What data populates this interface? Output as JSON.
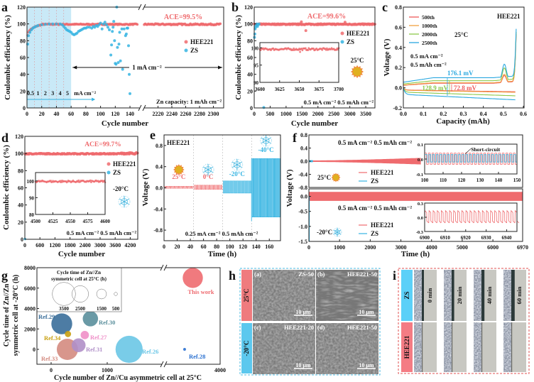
{
  "colors": {
    "hee221": "#ef6b6e",
    "zs": "#35b4e2",
    "shade": "#c9e9f7",
    "c500": "#ef5a5a",
    "c1000": "#f0a040",
    "c2000": "#8cc84b",
    "c2500": "#2aa8e0",
    "sun": "#e0b020",
    "sun_rays": "#f08a3c"
  },
  "legend": {
    "hee221": "HEE221",
    "zs": "ZS"
  },
  "panel_letters": {
    "a": "a",
    "b": "b",
    "c": "c",
    "d": "d",
    "e": "e",
    "f": "f",
    "g": "g",
    "h": "h",
    "i": "i"
  },
  "chart_data": [
    {
      "panel": "a",
      "type": "scatter",
      "xlabel": "Cycle number",
      "ylabel": "Coulombic efficiency (%)",
      "ylim": [
        0,
        120
      ],
      "yticks": [
        "0",
        "20",
        "40",
        "60",
        "80",
        "100",
        "120"
      ],
      "xlim_segments": [
        [
          0,
          150
        ],
        [
          2200,
          2315
        ]
      ],
      "xticks": [
        "0",
        "20",
        "40",
        "60",
        "80",
        "100",
        "120",
        "140",
        "2220",
        "2240",
        "2260",
        "2280",
        "2300"
      ],
      "ace_label": "ACE=99.5%",
      "ace": 99.5,
      "rate_steps": [
        "0.5",
        "1",
        "2",
        "3",
        "4",
        "5"
      ],
      "rate_step_cycles": [
        [
          0,
          10
        ],
        [
          10,
          20
        ],
        [
          20,
          30
        ],
        [
          30,
          40
        ],
        [
          40,
          50
        ],
        [
          50,
          60
        ]
      ],
      "rate_unit": "mA cm⁻²",
      "constant_current_label": "1 mA cm⁻²",
      "capacity_label": "Zn capacity: 1 mAh cm⁻²",
      "series": [
        {
          "name": "HEE221",
          "ramp": [
            [
              1,
              87
            ],
            [
              3,
              92
            ],
            [
              6,
              94
            ],
            [
              10,
              96
            ],
            [
              15,
              98
            ],
            [
              20,
              99
            ]
          ],
          "plateau": 99.5,
          "range": [
            [
              1,
              150
            ],
            [
              2200,
              2310
            ]
          ]
        },
        {
          "name": "ZS",
          "points": [
            [
              1,
              76
            ],
            [
              2,
              86
            ],
            [
              4,
              90
            ],
            [
              6,
              93
            ],
            [
              8,
              95
            ],
            [
              10,
              96
            ],
            [
              12,
              97
            ],
            [
              15,
              98
            ],
            [
              20,
              99
            ],
            [
              25,
              99.5
            ],
            [
              30,
              100
            ],
            [
              35,
              100
            ],
            [
              40,
              100
            ],
            [
              45,
              100
            ],
            [
              48,
              99
            ],
            [
              50,
              97
            ],
            [
              52,
              95
            ],
            [
              54,
              93
            ],
            [
              56,
              92
            ],
            [
              58,
              91
            ],
            [
              60,
              90
            ],
            [
              62,
              88
            ],
            [
              64,
              87
            ],
            [
              66,
              88
            ],
            [
              68,
              89
            ],
            [
              70,
              91
            ],
            [
              72,
              92
            ],
            [
              74,
              93
            ],
            [
              76,
              94
            ],
            [
              78,
              95
            ],
            [
              80,
              95
            ],
            [
              82,
              96
            ],
            [
              85,
              96
            ],
            [
              88,
              95
            ],
            [
              90,
              97
            ],
            [
              92,
              96
            ],
            [
              94,
              98
            ],
            [
              96,
              97
            ],
            [
              98,
              99
            ],
            [
              100,
              101
            ],
            [
              102,
              94
            ],
            [
              104,
              100
            ],
            [
              106,
              102
            ],
            [
              108,
              99
            ],
            [
              110,
              96
            ],
            [
              112,
              93
            ],
            [
              114,
              63
            ],
            [
              115,
              75
            ],
            [
              116,
              91
            ],
            [
              117,
              96
            ],
            [
              118,
              103
            ],
            [
              119,
              80
            ],
            [
              120,
              53
            ],
            [
              121,
              52
            ],
            [
              122,
              120
            ],
            [
              123,
              72
            ],
            [
              124,
              54
            ],
            [
              125,
              76
            ],
            [
              126,
              90
            ],
            [
              127,
              56
            ],
            [
              129,
              94
            ],
            [
              130,
              46
            ],
            [
              132,
              94
            ],
            [
              134,
              86
            ],
            [
              135,
              88
            ],
            [
              136,
              95
            ],
            [
              137,
              95
            ],
            [
              138,
              74
            ],
            [
              139,
              40
            ],
            [
              140,
              17
            ]
          ]
        }
      ]
    },
    {
      "panel": "b",
      "type": "scatter",
      "xlabel": "Cycle number",
      "ylabel": "Coulombic efficiency (%)",
      "xlim": [
        0,
        3800
      ],
      "ylim": [
        0,
        120
      ],
      "xticks": [
        "0",
        "500",
        "1000",
        "1500",
        "2000",
        "2500",
        "3000",
        "3500"
      ],
      "yticks": [
        "0",
        "20",
        "40",
        "60",
        "80",
        "100",
        "120"
      ],
      "ace_label": "ACE=99.6%",
      "ace": 99.6,
      "temperature": "25°C",
      "condition": "0.5 mA cm⁻²  0.5 mAh cm⁻²",
      "series": [
        {
          "name": "HEE221",
          "plateau": 99.6,
          "range": [
            0,
            3800
          ],
          "outliers": [
            [
              1480,
              102.5
            ],
            [
              1620,
              92
            ],
            [
              2850,
              102
            ]
          ]
        },
        {
          "name": "ZS",
          "points": [
            [
              10,
              84
            ],
            [
              20,
              88
            ],
            [
              30,
              94
            ],
            [
              40,
              96
            ],
            [
              60,
              98
            ],
            [
              80,
              100
            ],
            [
              100,
              97
            ],
            [
              120,
              99
            ],
            [
              150,
              100
            ],
            [
              300,
              0.5
            ]
          ]
        }
      ],
      "inset": {
        "xlim": [
          3600,
          3700
        ],
        "ylim": [
          90,
          101.5
        ],
        "xticks": [
          "3600",
          "3625",
          "3650",
          "3675",
          "3700"
        ],
        "yticks": [
          "90",
          "95",
          "100"
        ],
        "plateau": 99.6,
        "outliers": [
          [
            3651,
            98.8
          ]
        ]
      }
    },
    {
      "panel": "c",
      "type": "line",
      "xlabel": "Capacity (mAh)",
      "ylabel": "Voltage (V)",
      "xlim": [
        0,
        0.6
      ],
      "ylim": [
        -0.2,
        0.8
      ],
      "xticks": [
        "0.0",
        "0.1",
        "0.2",
        "0.3",
        "0.4",
        "0.5",
        "0.6"
      ],
      "yticks": [
        "-0.2",
        "0.0",
        "0.2",
        "0.4",
        "0.6",
        "0.8"
      ],
      "title": "HEE221",
      "temperature": "25°C",
      "current": "0.5 mA cm⁻²",
      "capacity": "0.5 mAh cm⁻²",
      "series": [
        {
          "name": "500th",
          "color_key": "c500",
          "plating_end": -0.04,
          "stripping_plateau": 0.045,
          "bump": 0.09
        },
        {
          "name": "1000th",
          "color_key": "c1000",
          "plating_end": -0.045,
          "stripping_plateau": 0.05,
          "bump": 0.1
        },
        {
          "name": "2000th",
          "color_key": "c2000",
          "plating_end": -0.08,
          "stripping_plateau": 0.07,
          "bump": 0.15
        },
        {
          "name": "2500th",
          "color_key": "c2500",
          "plating_end": -0.12,
          "stripping_plateau": 0.1,
          "bump": 0.17
        }
      ],
      "annotations": [
        {
          "text": "176.1 mV",
          "color_key": "c2500",
          "value_mv": 176.1
        },
        {
          "text": "128.9 mV",
          "color_key": "c2000",
          "value_mv": 128.9
        },
        {
          "text": "72.8 mV",
          "color_key": "c500",
          "value_mv": 72.8
        }
      ]
    },
    {
      "panel": "d",
      "type": "scatter",
      "xlabel": "Cycle number",
      "ylabel": "Coulombic efficiency (%)",
      "xlim": [
        0,
        4500
      ],
      "ylim": [
        0,
        120
      ],
      "xticks": [
        "0",
        "600",
        "1200",
        "1800",
        "2400",
        "3000",
        "3600",
        "4200"
      ],
      "yticks": [
        "0",
        "20",
        "40",
        "60",
        "80",
        "100",
        "120"
      ],
      "ace_label": "ACE=99.7%",
      "ace": 99.7,
      "temperature": "-20°C",
      "condition": "0.5 mA cm⁻²  0.5 mAh cm⁻²",
      "series": [
        {
          "name": "HEE221",
          "plateau": 99.7,
          "range": [
            0,
            4500
          ]
        },
        {
          "name": "ZS",
          "points": [
            [
              5,
              0.3
            ]
          ]
        }
      ],
      "inset": {
        "xlim": [
          4500,
          4600
        ],
        "ylim": [
          80,
          105
        ],
        "xticks": [
          "4500",
          "4525",
          "4550",
          "4575",
          "4600"
        ],
        "yticks": [
          "80",
          "90",
          "100"
        ],
        "plateau": 99.7
      }
    },
    {
      "panel": "e",
      "type": "line",
      "xlabel": "Time (h)",
      "ylabel": "Voltage (V)",
      "xlim": [
        0,
        177
      ],
      "ylim": [
        -1.0,
        1.0
      ],
      "xticks": [
        "0",
        "20",
        "40",
        "60",
        "80",
        "100",
        "120",
        "140",
        "160"
      ],
      "yticks": [
        "-0.8",
        "-0.4",
        "0.0",
        "0.4",
        "0.8"
      ],
      "title": "HEE221",
      "condition": "0.25 mA cm⁻²  0.5 mAh cm⁻²",
      "segments": [
        {
          "label": "25°C",
          "t": [
            0,
            45
          ],
          "vmin": -0.01,
          "vmax": 0.03,
          "color_key": "hee221",
          "icon": "sun"
        },
        {
          "label": "0°C",
          "t": [
            45,
            89
          ],
          "vmin": -0.03,
          "vmax": 0.05,
          "color_key": "hee221",
          "icon": "snowflake"
        },
        {
          "label": "-20°C",
          "t": [
            89,
            133
          ],
          "vmin": -0.1,
          "vmax": 0.13,
          "color_key": "zs",
          "icon": "snowflake"
        },
        {
          "label": "-40°C",
          "t": [
            133,
            177
          ],
          "vmin": -0.55,
          "vmax": 0.55,
          "color_key": "zs",
          "icon": "snowflake"
        }
      ]
    },
    {
      "panel": "f",
      "type": "line",
      "xlabel": "Time (h)",
      "ylabel": "Voltage (V)",
      "xlim": [
        0,
        6970
      ],
      "xticks": [
        "0",
        "1000",
        "2000",
        "3000",
        "4000",
        "5000",
        "6000",
        "6970"
      ],
      "top": {
        "ylim": [
          -0.8,
          0.8
        ],
        "yticks": [
          "-0.8",
          "-0.4",
          "0.0",
          "0.4",
          "0.8"
        ],
        "condition": "0.5 mA cm⁻²  0.5 mAh cm⁻²",
        "temperature": "25°C",
        "hee221": {
          "end_h": 3650,
          "amp_start": 0.02,
          "amp_end": 0.1
        },
        "zs": {
          "end_h": 130,
          "amp": 0.03
        },
        "inset": {
          "xlim": [
            100,
            150
          ],
          "ylim": [
            -0.1,
            0.1
          ],
          "xticks": [
            "100",
            "110",
            "120",
            "130",
            "140",
            "150"
          ],
          "yticks": [
            "-0.1",
            "0.0",
            "0.1"
          ],
          "annotation": "Short-circuit",
          "short_circuit_h": 122
        }
      },
      "bottom": {
        "ylim": [
          -1.5,
          0.25
        ],
        "yticks": [
          "-1.5",
          "-1.0",
          "-0.5",
          "0.0"
        ],
        "condition": "0.5 mA cm⁻²  0.5 mAh cm⁻²",
        "temperature": "-20°C",
        "hee221": {
          "end_h": 6970,
          "amp": 0.15
        },
        "zs": {
          "end_h": 10,
          "final_v": -1.5
        },
        "inset": {
          "xlim": [
            6900,
            6945
          ],
          "ylim": [
            -0.3,
            0.3
          ],
          "xticks": [
            "6900",
            "6910",
            "6920",
            "6930",
            "6940"
          ],
          "yticks": [
            "-0.3",
            "0.0",
            "0.3"
          ]
        }
      }
    },
    {
      "panel": "g",
      "type": "scatter",
      "xlabel": "Cycle number of Zn//Cu asymmetric cell at 25°C",
      "ylabel": [
        "Cycle time of Zn//Zn",
        "symmetric cell at -20°C (h)"
      ],
      "xticks": [
        "0",
        "1000",
        "4000"
      ],
      "yticks": [
        "0",
        "2000",
        "4000",
        "6000",
        "8000"
      ],
      "ylim": [
        -1400,
        8000
      ],
      "size_legend": {
        "title": [
          "Cycle time of Zn//Zn",
          "symmetric cell at 25°C (h)"
        ],
        "sizes": [
          3500,
          2500,
          1500,
          500
        ],
        "labels": [
          "3500",
          "2500",
          "1500",
          "500"
        ]
      },
      "points": [
        {
          "label": "This work",
          "x": 3000,
          "y": 7000,
          "size": 2900,
          "color": "#ee6b70"
        },
        {
          "label": "Ref.29",
          "x": 190,
          "y": 2500,
          "size": 3000,
          "color": "#3a6e9a"
        },
        {
          "label": "Ref.30",
          "x": 700,
          "y": 3000,
          "size": 2200,
          "color": "#5a8f9c"
        },
        {
          "label": "Ref.34",
          "x": 300,
          "y": 1500,
          "size": 900,
          "color": "#c9a010"
        },
        {
          "label": "Ref.27",
          "x": 600,
          "y": 1400,
          "size": 1200,
          "color": "#ef8fc8"
        },
        {
          "label": "Ref.33",
          "x": 290,
          "y": 0,
          "size": 3050,
          "color": "#d48b80"
        },
        {
          "label": "Ref.31",
          "x": 490,
          "y": 400,
          "size": 2000,
          "color": "#b08fc8"
        },
        {
          "label": "Ref.26",
          "x": 1390,
          "y": 0,
          "size": 3900,
          "color": "#6ac6e6"
        },
        {
          "label": "Ref.28",
          "x": 2700,
          "y": 0,
          "size": 400,
          "color": "#2a70d0"
        }
      ]
    }
  ],
  "panel_h": {
    "row_labels": [
      "25°C",
      "-20°C"
    ],
    "images": [
      {
        "tag": "(a)",
        "name": "ZS-50",
        "scale": "10 μm"
      },
      {
        "tag": "(b)",
        "name": "HEE221-50",
        "scale": "10 μm"
      },
      {
        "tag": "(c)",
        "name": "HEE221-20",
        "scale": "10 μm"
      },
      {
        "tag": "(d)",
        "name": "HEE221-50",
        "scale": "10 μm"
      }
    ]
  },
  "panel_i": {
    "row_labels": [
      "ZS",
      "HEE221"
    ],
    "times": [
      "0 min",
      "20 min",
      "40 min",
      "60 min"
    ]
  }
}
